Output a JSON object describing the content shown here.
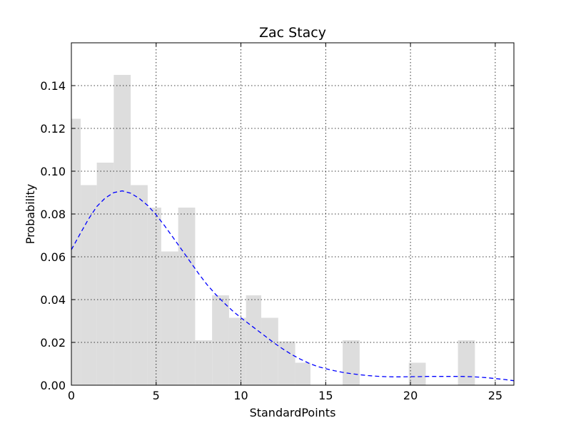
{
  "chart_data": {
    "type": "bar",
    "title": "Zac Stacy",
    "xlabel": "StandardPoints",
    "ylabel": "Probability",
    "xlim": [
      0,
      26.1
    ],
    "ylim": [
      0,
      0.16
    ],
    "xticks": [
      0,
      5,
      10,
      15,
      20,
      25
    ],
    "xtick_labels": [
      "0",
      "5",
      "10",
      "15",
      "20",
      "25"
    ],
    "yticks": [
      0,
      0.02,
      0.04,
      0.06,
      0.08,
      0.1,
      0.12,
      0.14
    ],
    "ytick_labels": [
      "0.00",
      "0.02",
      "0.04",
      "0.06",
      "0.08",
      "0.10",
      "0.12",
      "0.14"
    ],
    "grid": true,
    "histogram": {
      "bin_edges": [
        0,
        0.55,
        1.5,
        2.5,
        3.5,
        4.5,
        5.3,
        6.3,
        7.3,
        8.3,
        9.3,
        10.3,
        11.2,
        12.2,
        13.2,
        14.1,
        16.0,
        17.0,
        19.9,
        20.9,
        22.8,
        23.8
      ],
      "values": [
        0.1245,
        0.0935,
        0.104,
        0.145,
        0.0935,
        0.083,
        0.0625,
        0.083,
        0.021,
        0.042,
        0.0315,
        0.042,
        0.0315,
        0.0205,
        0.0105,
        0,
        0.021,
        0,
        0.0105,
        0,
        0.021
      ],
      "color": "#dddddd"
    },
    "density_curve": {
      "x": [
        0,
        0.5,
        1,
        1.5,
        2,
        2.5,
        3,
        3.5,
        4,
        4.5,
        5,
        5.5,
        6,
        6.5,
        7,
        7.5,
        8,
        8.5,
        9,
        9.5,
        10,
        10.5,
        11,
        11.5,
        12,
        12.5,
        13,
        13.5,
        14,
        14.5,
        15,
        15.5,
        16,
        16.5,
        17,
        17.5,
        18,
        18.5,
        19,
        19.5,
        20,
        20.5,
        21,
        21.5,
        22,
        22.5,
        23,
        23.5,
        24,
        24.5,
        25,
        25.5,
        26.1
      ],
      "y": [
        0.0633,
        0.0705,
        0.0775,
        0.0835,
        0.0875,
        0.09,
        0.0908,
        0.0897,
        0.0873,
        0.084,
        0.0796,
        0.0745,
        0.069,
        0.0634,
        0.0578,
        0.0522,
        0.047,
        0.0425,
        0.0385,
        0.0348,
        0.0315,
        0.0285,
        0.0255,
        0.0225,
        0.0195,
        0.0168,
        0.0143,
        0.0122,
        0.0103,
        0.0088,
        0.0077,
        0.0068,
        0.006,
        0.0054,
        0.0049,
        0.0045,
        0.0042,
        0.004,
        0.0039,
        0.0039,
        0.004,
        0.004,
        0.0041,
        0.0041,
        0.0041,
        0.0041,
        0.0041,
        0.004,
        0.0038,
        0.0035,
        0.0031,
        0.0027,
        0.0021
      ],
      "color": "#0000ff",
      "dashed": true
    }
  }
}
